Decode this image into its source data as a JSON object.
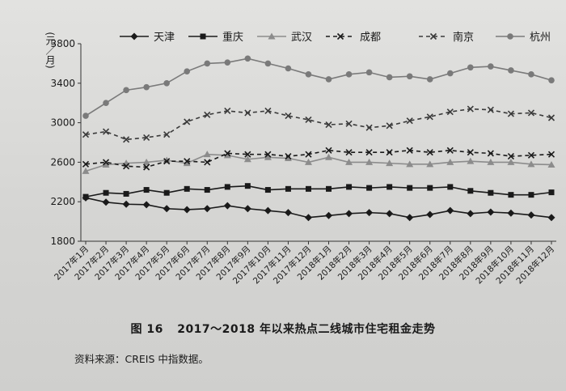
{
  "figure": {
    "number": "图 16",
    "title": "2017～2018 年以来热点二线城市住宅租金走势"
  },
  "source_note": "资料来源：CREIS 中指数据。",
  "chart_data": {
    "type": "line",
    "title": "",
    "xlabel": "",
    "ylabel": "(元／月)",
    "ylim": [
      1800,
      3800
    ],
    "yticks": [
      1800,
      2200,
      2600,
      3000,
      3400,
      3800
    ],
    "grid": false,
    "legend_position": "top",
    "categories": [
      "2017年1月",
      "2017年2月",
      "2017年3月",
      "2017年4月",
      "2017年5月",
      "2017年6月",
      "2017年7月",
      "2017年8月",
      "2017年9月",
      "2017年10月",
      "2017年11月",
      "2017年12月",
      "2018年1月",
      "2018年2月",
      "2018年3月",
      "2018年4月",
      "2018年5月",
      "2018年6月",
      "2018年7月",
      "2018年8月",
      "2018年9月",
      "2018年10月",
      "2018年11月",
      "2018年12月"
    ],
    "series": [
      {
        "name": "天津",
        "marker": "diamond",
        "dash": "solid",
        "color": "#1a1a1a",
        "values": [
          2240,
          2195,
          2175,
          2170,
          2130,
          2120,
          2130,
          2160,
          2130,
          2110,
          2090,
          2040,
          2060,
          2080,
          2090,
          2080,
          2040,
          2070,
          2110,
          2080,
          2095,
          2085,
          2065,
          2040
        ]
      },
      {
        "name": "重庆",
        "marker": "square",
        "dash": "solid",
        "color": "#1a1a1a",
        "values": [
          2250,
          2290,
          2280,
          2320,
          2290,
          2330,
          2320,
          2350,
          2360,
          2320,
          2330,
          2330,
          2330,
          2350,
          2340,
          2350,
          2340,
          2340,
          2350,
          2310,
          2290,
          2270,
          2270,
          2295
        ]
      },
      {
        "name": "武汉",
        "marker": "triangle",
        "dash": "solid",
        "color": "#8c8c8c",
        "values": [
          2510,
          2575,
          2590,
          2600,
          2620,
          2590,
          2680,
          2670,
          2630,
          2650,
          2640,
          2600,
          2650,
          2600,
          2600,
          2590,
          2580,
          2580,
          2600,
          2610,
          2600,
          2600,
          2580,
          2575
        ]
      },
      {
        "name": "成都",
        "marker": "x",
        "dash": "dashed",
        "color": "#1a1a1a",
        "values": [
          2580,
          2600,
          2560,
          2550,
          2610,
          2610,
          2600,
          2690,
          2680,
          2680,
          2660,
          2680,
          2720,
          2700,
          2700,
          2700,
          2720,
          2700,
          2720,
          2700,
          2690,
          2660,
          2670,
          2680
        ]
      },
      {
        "name": "南京",
        "marker": "x",
        "dash": "dashed",
        "color": "#3a3a3a",
        "values": [
          2880,
          2910,
          2830,
          2850,
          2880,
          3010,
          3080,
          3120,
          3100,
          3120,
          3070,
          3030,
          2980,
          2990,
          2950,
          2970,
          3020,
          3060,
          3110,
          3140,
          3130,
          3090,
          3100,
          3050
        ]
      },
      {
        "name": "杭州",
        "marker": "circle",
        "dash": "solid",
        "color": "#7a7a7a",
        "values": [
          3070,
          3200,
          3330,
          3360,
          3400,
          3520,
          3600,
          3610,
          3650,
          3600,
          3550,
          3490,
          3440,
          3490,
          3510,
          3460,
          3470,
          3440,
          3500,
          3560,
          3570,
          3530,
          3490,
          3430
        ]
      }
    ]
  }
}
